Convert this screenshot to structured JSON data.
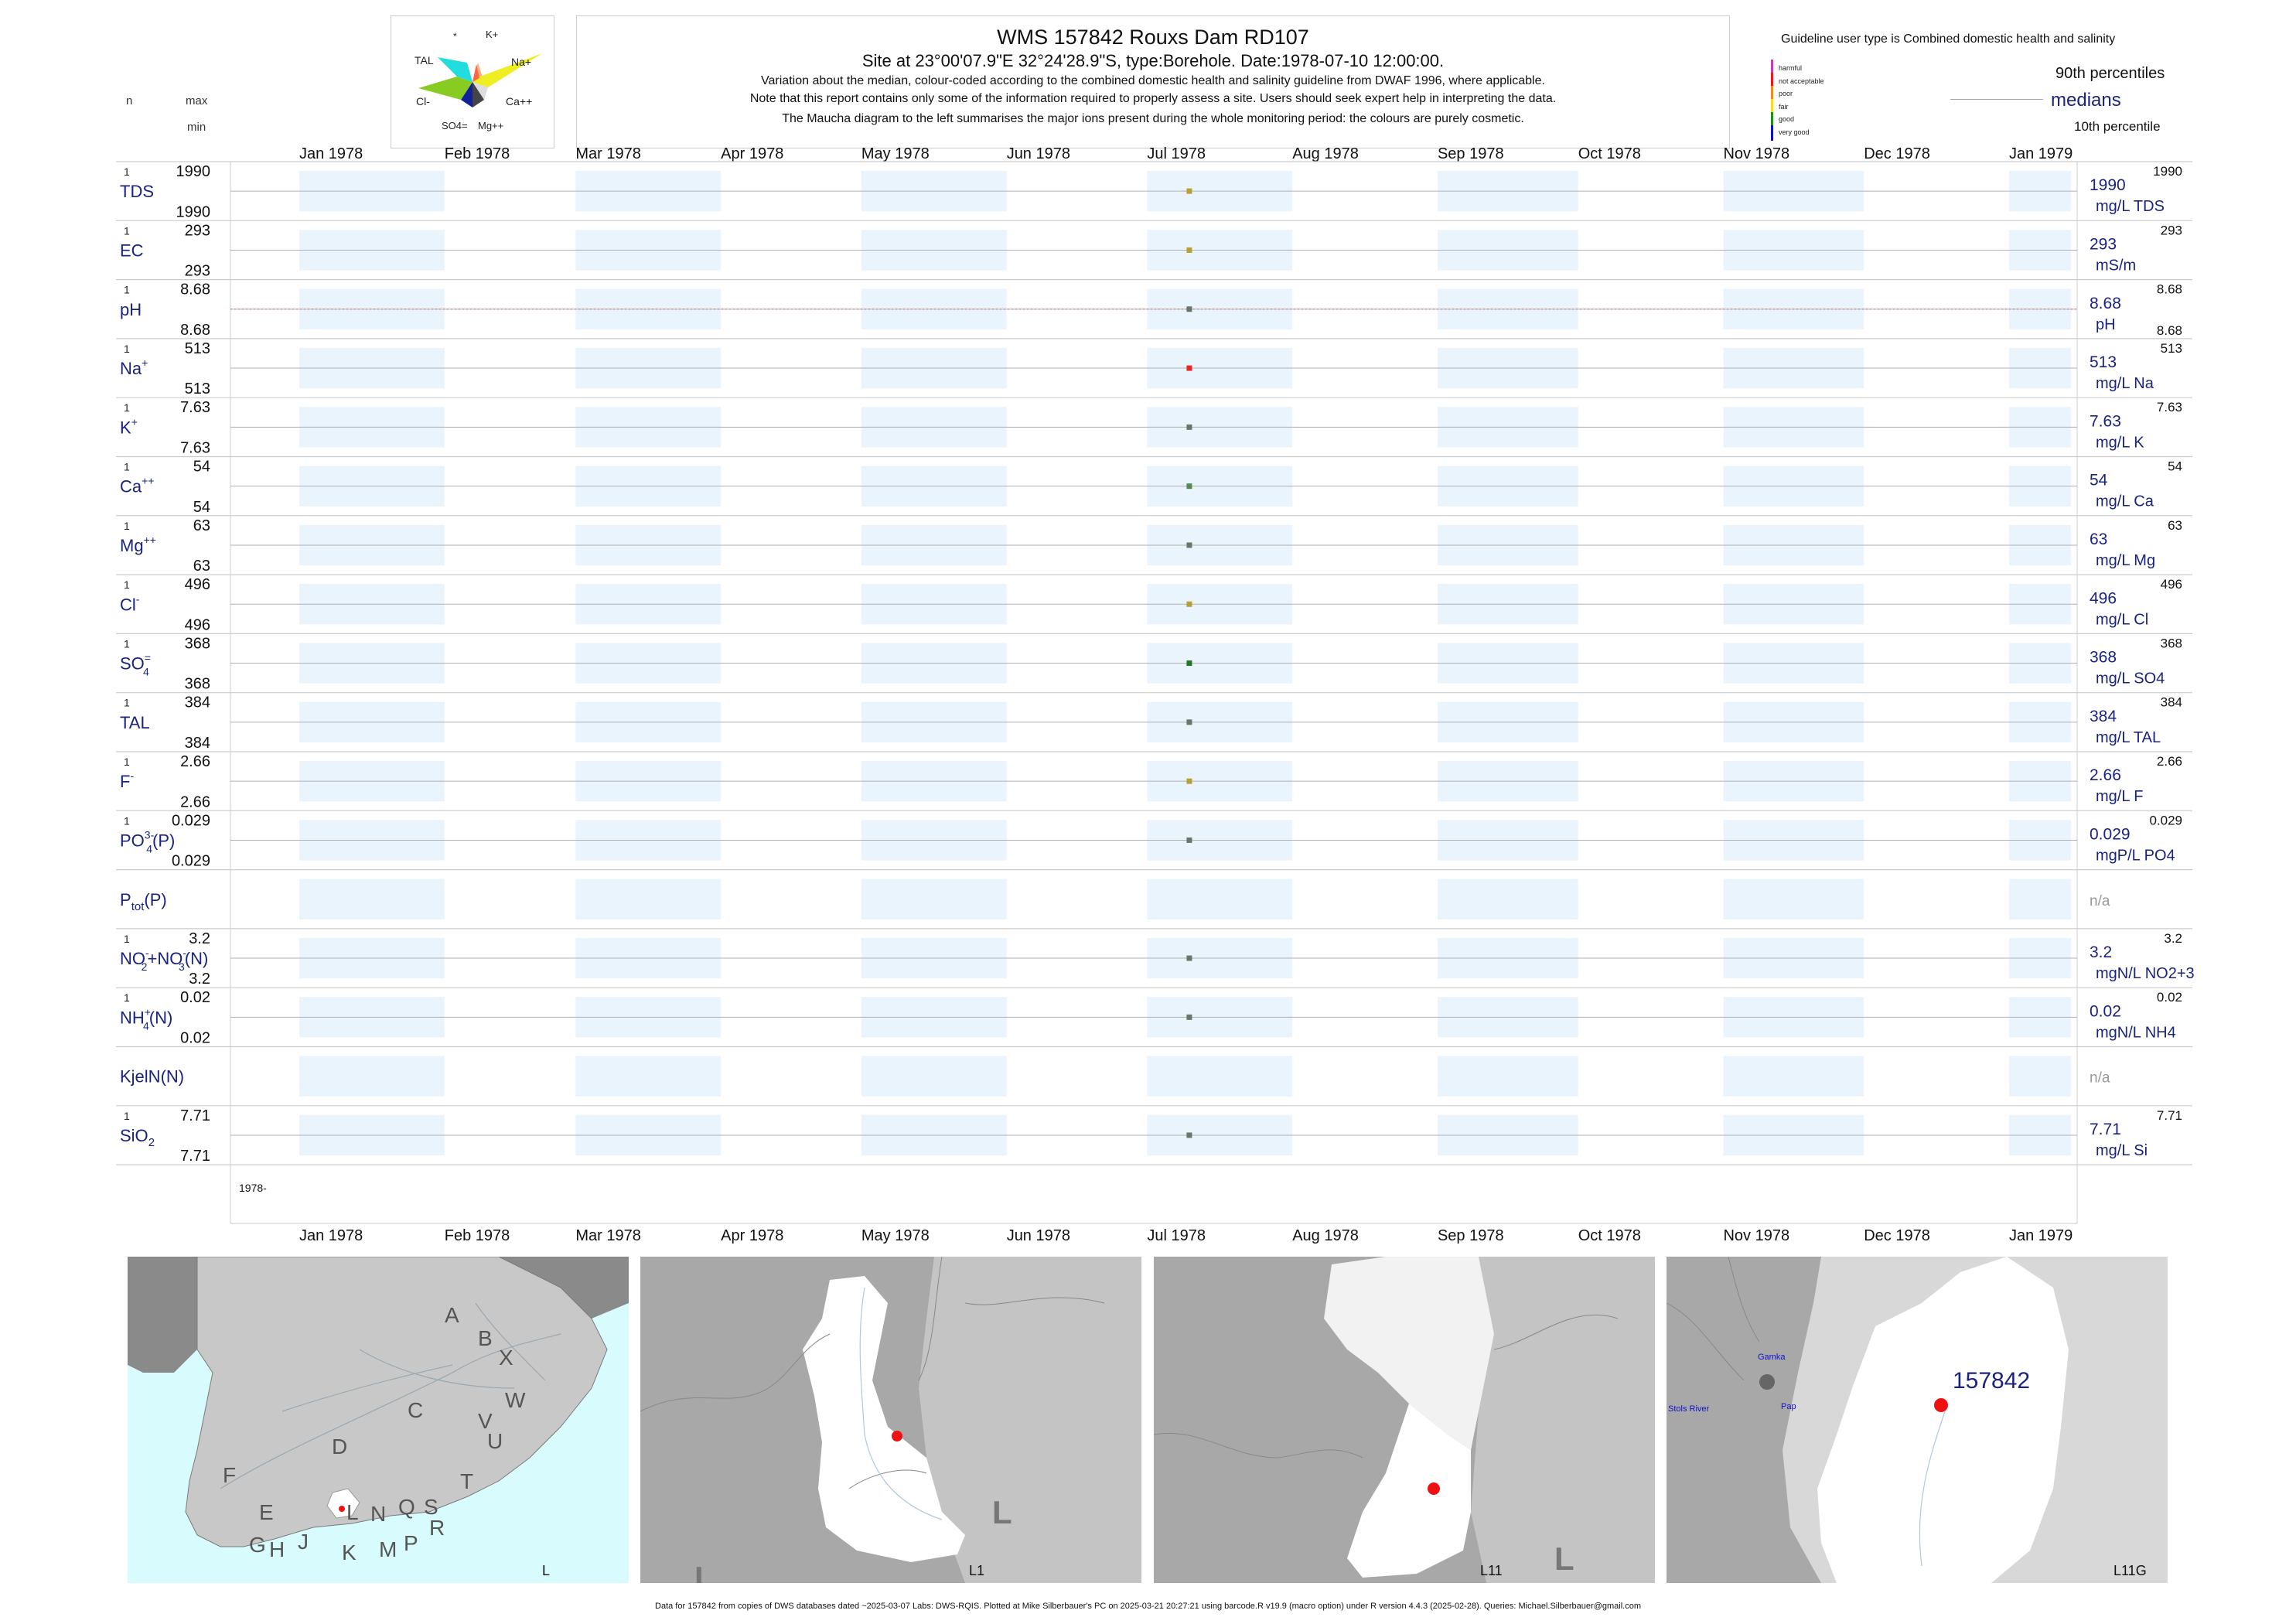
{
  "header": {
    "n_label": "n",
    "max_label": "max",
    "min_label": "min",
    "title": "WMS 157842  Rouxs Dam RD107",
    "site_line": "Site at 23°00'07.9\"E 32°24'28.9\"S, type:Borehole. Date:1978-07-10 12:00:00.",
    "note1": "Variation about the median,  colour-coded according to the combined domestic health and salinity guideline from DWAF 1996, where applicable.",
    "note2": "Note that this report contains only some of the information required to properly assess a site. Users should seek expert help in interpreting the data.",
    "note3": "The Maucha diagram to the left summarises the major ions present during the whole monitoring period: the colours are purely cosmetic."
  },
  "maucha": {
    "labels": {
      "star": "*",
      "k": "K+",
      "tal": "TAL",
      "na": "Na+",
      "cl": "Cl-",
      "ca": "Ca++",
      "so4": "SO4=",
      "mg": "Mg++"
    },
    "colors": {
      "k": "#ffb080",
      "tal": "#22dddd",
      "na": "#eeee22",
      "cl": "#88cc22",
      "ca": "#dddddd",
      "so4": "#112299",
      "mg": "#444444"
    }
  },
  "legend": {
    "guideline_text": "Guideline user type is Combined domestic health and salinity",
    "categories": [
      {
        "label": "harmful",
        "color": "#cc33cc"
      },
      {
        "label": "not acceptable",
        "color": "#ff1111"
      },
      {
        "label": "poor",
        "color": "#ff8800"
      },
      {
        "label": "fair",
        "color": "#ffdd00"
      },
      {
        "label": "good",
        "color": "#119911"
      },
      {
        "label": "very good",
        "color": "#1111cc"
      }
    ],
    "p90_label": "90th percentiles",
    "median_label": "medians",
    "p10_label": "10th percentile"
  },
  "chart_data": {
    "type": "scatter",
    "x_axis": {
      "range": [
        "1978-01-01",
        "1979-01-01"
      ],
      "tick_labels": [
        "Jan 1978",
        "Feb 1978",
        "Mar 1978",
        "Apr 1978",
        "May 1978",
        "Jun 1978",
        "Jul 1978",
        "Aug 1978",
        "Sep 1978",
        "Oct 1978",
        "Nov 1978",
        "Dec 1978",
        "Jan 1979"
      ],
      "bottom_year_label": "1978-"
    },
    "sample_date": "1978-07-10",
    "rows": [
      {
        "name": "TDS",
        "sup": "",
        "sub": "",
        "n": "1",
        "max": "1990",
        "min": "1990",
        "value": "1990",
        "unit": "mg/L TDS",
        "p90": "1990",
        "p10": "",
        "color": "#b8a032"
      },
      {
        "name": "EC",
        "sup": "",
        "sub": "",
        "n": "1",
        "max": "293",
        "min": "293",
        "value": "293",
        "unit": "mS/m",
        "p90": "293",
        "p10": "",
        "color": "#b8a032"
      },
      {
        "name": "pH",
        "sup": "",
        "sub": "",
        "n": "1",
        "max": "8.68",
        "min": "8.68",
        "value": "8.68",
        "unit": "pH",
        "p90": "8.68",
        "p10": "8.68",
        "color": "#667766",
        "guide_line": true
      },
      {
        "name": "Na",
        "sup": "+",
        "sub": "",
        "n": "1",
        "max": "513",
        "min": "513",
        "value": "513",
        "unit": "mg/L Na",
        "p90": "513",
        "p10": "",
        "color": "#ee2222"
      },
      {
        "name": "K",
        "sup": "+",
        "sub": "",
        "n": "1",
        "max": "7.63",
        "min": "7.63",
        "value": "7.63",
        "unit": "mg/L K",
        "p90": "7.63",
        "p10": "",
        "color": "#667766"
      },
      {
        "name": "Ca",
        "sup": "++",
        "sub": "",
        "n": "1",
        "max": "54",
        "min": "54",
        "value": "54",
        "unit": "mg/L Ca",
        "p90": "54",
        "p10": "",
        "color": "#558855"
      },
      {
        "name": "Mg",
        "sup": "++",
        "sub": "",
        "n": "1",
        "max": "63",
        "min": "63",
        "value": "63",
        "unit": "mg/L Mg",
        "p90": "63",
        "p10": "",
        "color": "#667766"
      },
      {
        "name": "Cl",
        "sup": "-",
        "sub": "",
        "n": "1",
        "max": "496",
        "min": "496",
        "value": "496",
        "unit": "mg/L Cl",
        "p90": "496",
        "p10": "",
        "color": "#b8a032"
      },
      {
        "name": "SO",
        "sup": "=",
        "sub": "4",
        "n": "1",
        "max": "368",
        "min": "368",
        "value": "368",
        "unit": "mg/L SO4",
        "p90": "368",
        "p10": "",
        "color": "#227722"
      },
      {
        "name": "TAL",
        "sup": "",
        "sub": "",
        "n": "1",
        "max": "384",
        "min": "384",
        "value": "384",
        "unit": "mg/L TAL",
        "p90": "384",
        "p10": "",
        "color": "#667766"
      },
      {
        "name": "F",
        "sup": "-",
        "sub": "",
        "n": "1",
        "max": "2.66",
        "min": "2.66",
        "value": "2.66",
        "unit": "mg/L F",
        "p90": "2.66",
        "p10": "",
        "color": "#b8a032"
      },
      {
        "name": "PO",
        "sup": "3-",
        "sub": "4",
        "suffix": "(P)",
        "n": "1",
        "max": "0.029",
        "min": "0.029",
        "value": "0.029",
        "unit": "mgP/L PO4",
        "p90": "0.029",
        "p10": "",
        "color": "#667766"
      },
      {
        "name": "P",
        "sup": "",
        "sub": "tot",
        "suffix": "(P)",
        "n": "",
        "max": "",
        "min": "",
        "value": "n/a",
        "unit": "",
        "p90": "",
        "p10": "",
        "color": ""
      },
      {
        "name": "NO",
        "sup": "-",
        "sub": "2",
        "suffix": "+NO",
        "sup2": "-",
        "sub2": "3",
        "suffix2": "(N)",
        "n": "1",
        "max": "3.2",
        "min": "3.2",
        "value": "3.2",
        "unit": "mgN/L NO2+3",
        "p90": "3.2",
        "p10": "",
        "color": "#667766"
      },
      {
        "name": "NH",
        "sup": "+",
        "sub": "4",
        "suffix": "(N)",
        "n": "1",
        "max": "0.02",
        "min": "0.02",
        "value": "0.02",
        "unit": "mgN/L NH4",
        "p90": "0.02",
        "p10": "",
        "color": "#667766"
      },
      {
        "name": "KjelN(N)",
        "sup": "",
        "sub": "",
        "n": "",
        "max": "",
        "min": "",
        "value": "n/a",
        "unit": "",
        "p90": "",
        "p10": "",
        "color": ""
      },
      {
        "name": "SiO",
        "sup": "",
        "sub": "2",
        "n": "1",
        "max": "7.71",
        "min": "7.71",
        "value": "7.71",
        "unit": "mg/L Si",
        "p90": "7.71",
        "p10": "",
        "color": "#667766"
      }
    ]
  },
  "maps": {
    "map1": {
      "corner_label": "L",
      "regions": [
        "A",
        "B",
        "X",
        "W",
        "C",
        "V",
        "U",
        "D",
        "T",
        "F",
        "E",
        "G",
        "H",
        "J",
        "K",
        "L",
        "M",
        "N",
        "Q",
        "P",
        "S",
        "R"
      ]
    },
    "map2": {
      "corner_label": "L1",
      "big_label": "L",
      "big_label2": "L"
    },
    "map3": {
      "corner_label": "L11",
      "big_label": "L"
    },
    "map4": {
      "corner_label": "L11G",
      "site_label": "157842",
      "places": [
        "Gamka",
        "Stols River",
        "Pap"
      ]
    }
  },
  "footer": {
    "text": "Data for 157842 from copies of DWS databases dated ~2025-03-07 Labs: DWS-RQIS. Plotted at Mike Silberbauer's PC on 2025-03-21 20:27:21 using barcode.R v19.9 (macro option) under R version 4.4.3 (2025-02-28). Queries: Michael.Silberbauer@gmail.com"
  }
}
